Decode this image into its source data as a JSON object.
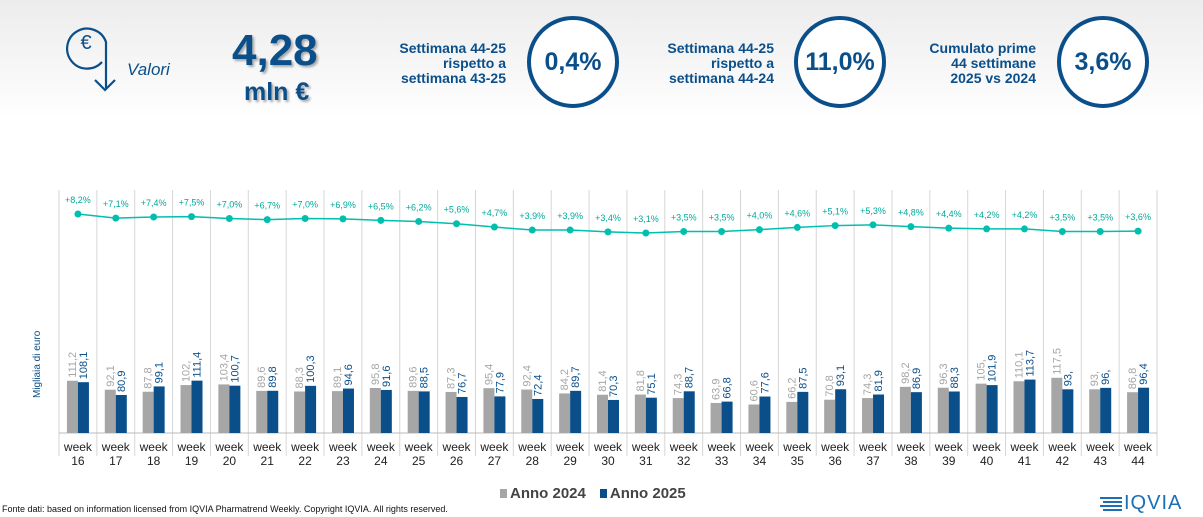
{
  "header": {
    "icon": "euro-down-arrow-icon",
    "label": "Valori",
    "value": "4,28",
    "unit": "mln €",
    "kpis": [
      {
        "title_lines": [
          "Settimana 44-25",
          "rispetto a",
          "settimana 43-25"
        ],
        "value": "0,4%"
      },
      {
        "title_lines": [
          "Settimana 44-25",
          "rispetto a",
          "settimana 44-24"
        ],
        "value": "11,0%"
      },
      {
        "title_lines": [
          "Cumulato prime",
          "44 settimane",
          "2025 vs 2024"
        ],
        "value": "3,6%"
      }
    ]
  },
  "chart_data": {
    "type": "bar",
    "ylabel": "Migliaia di euro",
    "categories": [
      "16",
      "17",
      "18",
      "19",
      "20",
      "21",
      "22",
      "23",
      "24",
      "25",
      "26",
      "27",
      "28",
      "29",
      "30",
      "31",
      "32",
      "33",
      "34",
      "35",
      "36",
      "37",
      "38",
      "39",
      "40",
      "41",
      "42",
      "43",
      "44"
    ],
    "category_prefix": "week",
    "series": [
      {
        "name": "Anno 2024",
        "color": "#a6a6a6",
        "values": [
          111.2,
          92.1,
          87.8,
          102,
          103.4,
          89.6,
          88.3,
          89.1,
          95.8,
          89.6,
          87.3,
          95.4,
          92.4,
          84.2,
          81.4,
          81.8,
          74.3,
          63.9,
          60.6,
          66.2,
          70.8,
          74.3,
          98.2,
          96.3,
          105,
          110.1,
          117.5,
          93,
          86.8
        ],
        "labels": [
          "111,2",
          "92,1",
          "87,8",
          "102,",
          "103,4",
          "89,6",
          "88,3",
          "89,1",
          "95,8",
          "89,6",
          "87,3",
          "95,4",
          "92,4",
          "84,2",
          "81,4",
          "81,8",
          "74,3",
          "63,9",
          "60,6",
          "66,2",
          "70,8",
          "74,3",
          "98,2",
          "96,3",
          "105,",
          "110,1",
          "117,5",
          "93,",
          "86,8"
        ]
      },
      {
        "name": "Anno 2025",
        "color": "#0b4f8a",
        "values": [
          108.1,
          80.9,
          99.1,
          111.4,
          100.7,
          89.8,
          100.3,
          94.6,
          91.6,
          88.5,
          76.7,
          77.9,
          72.4,
          89.7,
          70.3,
          75.1,
          88.7,
          66.8,
          77.6,
          87.5,
          93.1,
          81.9,
          86.9,
          88.3,
          101.9,
          113.7,
          93,
          96,
          96.4
        ],
        "labels": [
          "108,1",
          "80,9",
          "99,1",
          "111,4",
          "100,7",
          "89,8",
          "100,3",
          "94,6",
          "91,6",
          "88,5",
          "76,7",
          "77,9",
          "72,4",
          "89,7",
          "70,3",
          "75,1",
          "88,7",
          "66,8",
          "77,6",
          "87,5",
          "93,1",
          "81,9",
          "86,9",
          "88,3",
          "101,9",
          "113,7",
          "93,",
          "96,",
          "96,4"
        ]
      }
    ],
    "line": {
      "color": "#00bfae",
      "values": [
        8.2,
        7.1,
        7.4,
        7.5,
        7.0,
        6.7,
        7.0,
        6.9,
        6.5,
        6.2,
        5.6,
        4.7,
        3.9,
        3.9,
        3.4,
        3.1,
        3.5,
        3.5,
        4.0,
        4.6,
        5.1,
        5.3,
        4.8,
        4.4,
        4.2,
        4.2,
        3.5,
        3.5,
        3.6
      ],
      "labels": [
        "+8,2%",
        "+7,1%",
        "+7,4%",
        "+7,5%",
        "+7,0%",
        "+6,7%",
        "+7,0%",
        "+6,9%",
        "+6,5%",
        "+6,2%",
        "+5,6%",
        "+4,7%",
        "+3,9%",
        "+3,9%",
        "+3,4%",
        "+3,1%",
        "+3,5%",
        "+3,5%",
        "+4,0%",
        "+4,6%",
        "+5,1%",
        "+5,3%",
        "+4,8%",
        "+4,4%",
        "+4,2%",
        "+4,2%",
        "+3,5%",
        "+3,5%",
        "+3,6%"
      ]
    },
    "legend": "bottom",
    "grid": "vertical"
  },
  "footer": {
    "source": "Fonte dati: based on information licensed from IQVIA Pharmatrend Weekly. Copyright IQVIA. All rights reserved.",
    "logo": "IQVIA"
  }
}
